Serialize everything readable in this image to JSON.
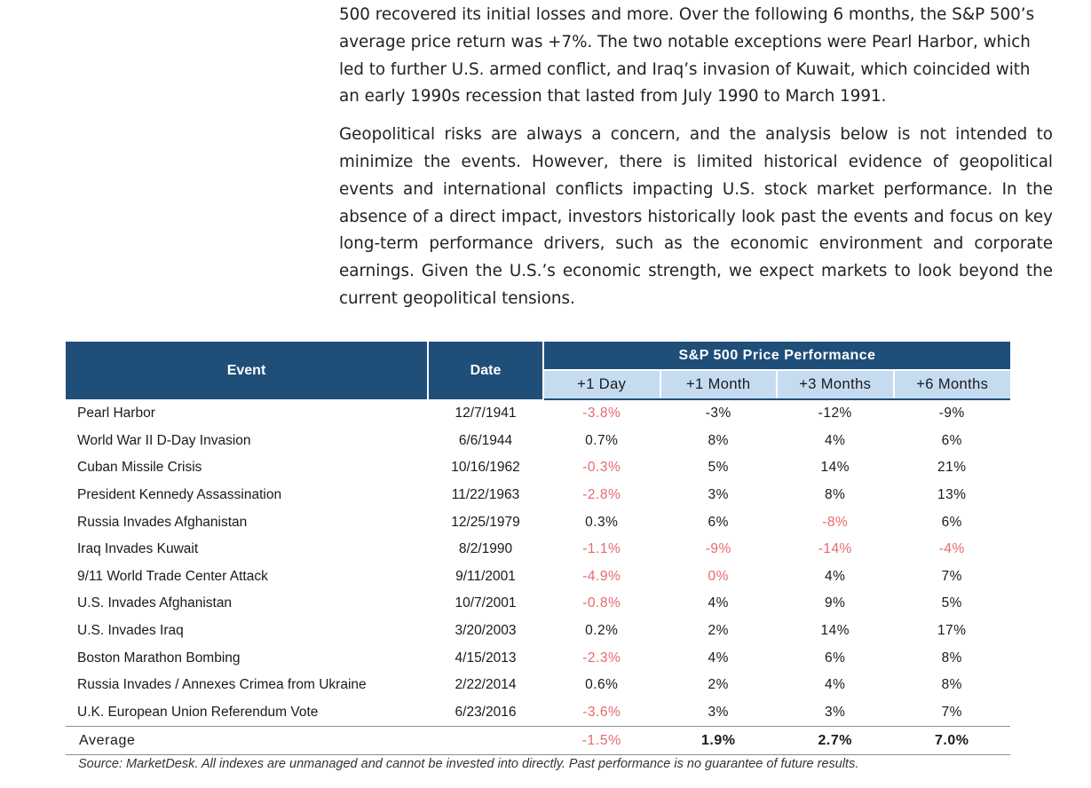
{
  "paragraphs": [
    "500 recovered its initial losses and more. Over the following 6 months, the S&P 500’s average price return was +7%. The two notable exceptions were Pearl Harbor, which led to further U.S. armed conflict, and Iraq’s invasion of Kuwait, which coincided with an early 1990s recession that lasted from July 1990 to March 1991.",
    "Geopolitical risks are always a concern, and the analysis below is not intended to minimize the events. However, there is limited historical evidence of geopolitical events and international conflicts impacting U.S. stock market performance. In the absence of a direct impact, investors historically look past the events and focus on key long-term performance drivers, such as the economic environment and corporate earnings. Given the U.S.’s economic strength, we expect markets to look beyond the current geopolitical tensions."
  ],
  "table": {
    "header_event": "Event",
    "header_date": "Date",
    "header_group": "S&P 500 Price Performance",
    "subheaders": [
      "+1 Day",
      "+1 Month",
      "+3 Months",
      "+6 Months"
    ],
    "rows": [
      {
        "event": "Pearl Harbor",
        "date": "12/7/1941",
        "values": [
          "-3.8%",
          "-3%",
          "-12%",
          "-9%"
        ]
      },
      {
        "event": "World War II D-Day Invasion",
        "date": "6/6/1944",
        "values": [
          "0.7%",
          "8%",
          "4%",
          "6%"
        ]
      },
      {
        "event": "Cuban Missile Crisis",
        "date": "10/16/1962",
        "values": [
          "-0.3%",
          "5%",
          "14%",
          "21%"
        ]
      },
      {
        "event": "President Kennedy Assassination",
        "date": "11/22/1963",
        "values": [
          "-2.8%",
          "3%",
          "8%",
          "13%"
        ]
      },
      {
        "event": "Russia Invades Afghanistan",
        "date": "12/25/1979",
        "values": [
          "0.3%",
          "6%",
          "-8%",
          "6%"
        ]
      },
      {
        "event": "Iraq Invades Kuwait",
        "date": "8/2/1990",
        "values": [
          "-1.1%",
          "-9%",
          "-14%",
          "-4%"
        ]
      },
      {
        "event": "9/11 World Trade Center Attack",
        "date": "9/11/2001",
        "values": [
          "-4.9%",
          "0%",
          "4%",
          "7%"
        ]
      },
      {
        "event": "U.S. Invades Afghanistan",
        "date": "10/7/2001",
        "values": [
          "-0.8%",
          "4%",
          "9%",
          "5%"
        ]
      },
      {
        "event": "U.S. Invades Iraq",
        "date": "3/20/2003",
        "values": [
          "0.2%",
          "2%",
          "14%",
          "17%"
        ]
      },
      {
        "event": "Boston Marathon Bombing",
        "date": "4/15/2013",
        "values": [
          "-2.3%",
          "4%",
          "6%",
          "8%"
        ]
      },
      {
        "event": "Russia Invades / Annexes Crimea from Ukraine",
        "date": "2/22/2014",
        "values": [
          "0.6%",
          "2%",
          "4%",
          "8%"
        ]
      },
      {
        "event": "U.K. European Union Referendum Vote",
        "date": "6/23/2016",
        "values": [
          "-3.6%",
          "3%",
          "3%",
          "7%"
        ]
      }
    ],
    "negative_cells": [
      [
        true,
        false,
        false,
        false
      ],
      [
        false,
        false,
        false,
        false
      ],
      [
        true,
        false,
        false,
        false
      ],
      [
        true,
        false,
        false,
        false
      ],
      [
        false,
        false,
        true,
        false
      ],
      [
        true,
        true,
        true,
        true
      ],
      [
        true,
        true,
        false,
        false
      ],
      [
        true,
        false,
        false,
        false
      ],
      [
        false,
        false,
        false,
        false
      ],
      [
        true,
        false,
        false,
        false
      ],
      [
        false,
        false,
        false,
        false
      ],
      [
        true,
        false,
        false,
        false
      ]
    ],
    "average": {
      "label": "Average",
      "values": [
        "-1.5%",
        "1.9%",
        "2.7%",
        "7.0%"
      ]
    },
    "colors": {
      "header_dark": "#1f4e79",
      "header_light": "#c5dcf0",
      "negative": "#e8686d"
    }
  },
  "source_note": "Source: MarketDesk. All indexes are unmanaged and cannot be invested into directly. Past performance is no guarantee of future results."
}
